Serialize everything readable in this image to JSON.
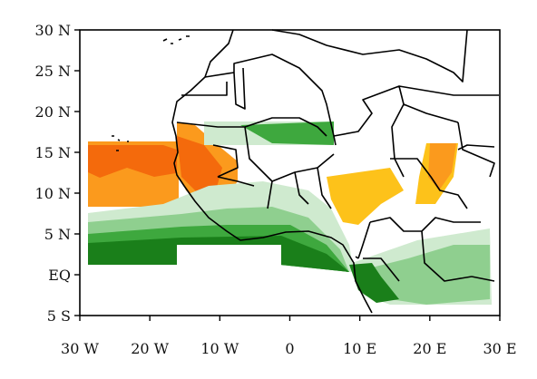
{
  "map": {
    "extent": {
      "lon": [
        -30,
        30
      ],
      "lat": [
        -5,
        30
      ]
    },
    "y_ticks": [
      {
        "lat": 30,
        "label": "30 N"
      },
      {
        "lat": 25,
        "label": "25 N"
      },
      {
        "lat": 20,
        "label": "20 N"
      },
      {
        "lat": 15,
        "label": "15 N"
      },
      {
        "lat": 10,
        "label": "10 N"
      },
      {
        "lat": 5,
        "label": "5 N"
      },
      {
        "lat": 0,
        "label": "EQ"
      },
      {
        "lat": -5,
        "label": "5 S"
      }
    ],
    "x_ticks": [
      {
        "lon": -30,
        "label": "30 W"
      },
      {
        "lon": -20,
        "label": "20 W"
      },
      {
        "lon": -10,
        "label": "10 W"
      },
      {
        "lon": 0,
        "label": "0"
      },
      {
        "lon": 10,
        "label": "10 E"
      },
      {
        "lon": 20,
        "label": "20 E"
      },
      {
        "lon": 30,
        "label": "30 E"
      }
    ],
    "colors": {
      "orange_strong": "#f46a0c",
      "orange_mid": "#fb9a1d",
      "yellow": "#fdc21a",
      "green_dark": "#1a7f1a",
      "green_mid": "#3ea83e",
      "green_light": "#8fcf8f",
      "green_pale": "#cfeacf",
      "coastline": "#000000"
    }
  }
}
